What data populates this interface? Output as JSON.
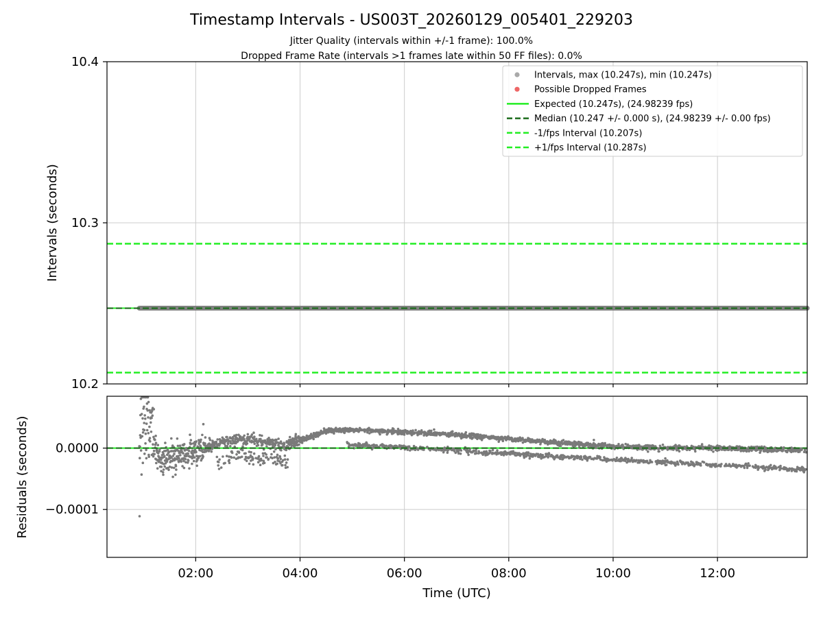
{
  "page_title": "Timestamp Intervals - US003T_20260129_005401_229203",
  "subtitle_1": "Jitter Quality (intervals within +/-1 frame): 100.0%",
  "subtitle_2": "Dropped Frame Rate (intervals >1 frames late within 50 FF files): 0.0%",
  "colors": {
    "interval_points": "#808080",
    "dropped_points": "#ee5555",
    "expected_line": "#22ee22",
    "median_line": "#1b6b1b",
    "fps_interval_line": "#22ee22",
    "grid": "#cccccc",
    "residual_points": "#7a7a7a"
  },
  "chart_data": [
    {
      "id": "top",
      "type": "scatter",
      "ylabel": "Intervals (seconds)",
      "ylim": [
        10.2,
        10.4
      ],
      "xlim_hours": [
        0.3,
        13.72
      ],
      "yticks": [
        10.2,
        10.3,
        10.4
      ],
      "ytick_labels": [
        "10.2",
        "10.3",
        "10.4"
      ],
      "grid": true,
      "legend_position": "top-right",
      "legend": [
        {
          "label": "Intervals, max (10.247s), min (10.247s)",
          "marker": "dot",
          "color": "#a9a9a9"
        },
        {
          "label": "Possible Dropped Frames",
          "marker": "dot",
          "color": "#ee6666"
        },
        {
          "label": "Expected (10.247s), (24.98239 fps)",
          "marker": "line-solid",
          "color": "#22ee22"
        },
        {
          "label": "Median (10.247 +/- 0.000 s), (24.98239 +/- 0.00 fps)",
          "marker": "line-dash",
          "color": "#1b6b1b"
        },
        {
          "label": "-1/fps Interval (10.207s)",
          "marker": "line-dash",
          "color": "#22ee22"
        },
        {
          "label": "+1/fps Interval (10.287s)",
          "marker": "line-dash",
          "color": "#22ee22"
        }
      ],
      "series": [
        {
          "name": "Intervals",
          "x_start_hours": 0.92,
          "x_end_hours": 13.72,
          "y": 10.247
        },
        {
          "name": "Expected",
          "y": 10.247
        },
        {
          "name": "Median",
          "y": 10.247
        },
        {
          "name": "-1/fps Interval",
          "y": 10.207
        },
        {
          "name": "+1/fps Interval",
          "y": 10.287
        }
      ]
    },
    {
      "id": "residuals",
      "type": "scatter",
      "ylabel": "Residuals (seconds)",
      "xlabel": "Time (UTC)",
      "ylim": [
        -0.000178,
        8.45e-05
      ],
      "xlim_hours": [
        0.3,
        13.72
      ],
      "yticks": [
        0.0,
        -0.0001
      ],
      "ytick_labels": [
        "0.0000",
        "−0.0001"
      ],
      "xticks_hours": [
        2,
        4,
        6,
        8,
        10,
        12
      ],
      "xtick_labels": [
        "02:00",
        "04:00",
        "06:00",
        "08:00",
        "10:00",
        "12:00"
      ],
      "grid": true,
      "zero_line": {
        "y": 0.0,
        "style": "dashed",
        "color": "#1b6b1b"
      },
      "series": [
        {
          "name": "Residuals",
          "trend_points": [
            [
              0.92,
              5e-06
            ],
            [
              1.0,
              6e-05
            ],
            [
              1.1,
              4e-05
            ],
            [
              1.3,
              -2e-05
            ],
            [
              1.6,
              -1.5e-05
            ],
            [
              2.0,
              -5e-06
            ],
            [
              2.5,
              1e-05
            ],
            [
              3.0,
              1.5e-05
            ],
            [
              3.7,
              5e-06
            ],
            [
              4.0,
              1.2e-05
            ],
            [
              4.5,
              2.8e-05
            ],
            [
              5.0,
              3e-05
            ],
            [
              5.5,
              2.8e-05
            ],
            [
              6.0,
              2.6e-05
            ],
            [
              7.0,
              2.2e-05
            ],
            [
              8.0,
              1.5e-05
            ],
            [
              9.0,
              8e-06
            ],
            [
              10.0,
              3e-06
            ],
            [
              11.0,
              0.0
            ],
            [
              12.0,
              0.0
            ],
            [
              13.7,
              -4e-06
            ]
          ]
        }
      ]
    }
  ]
}
